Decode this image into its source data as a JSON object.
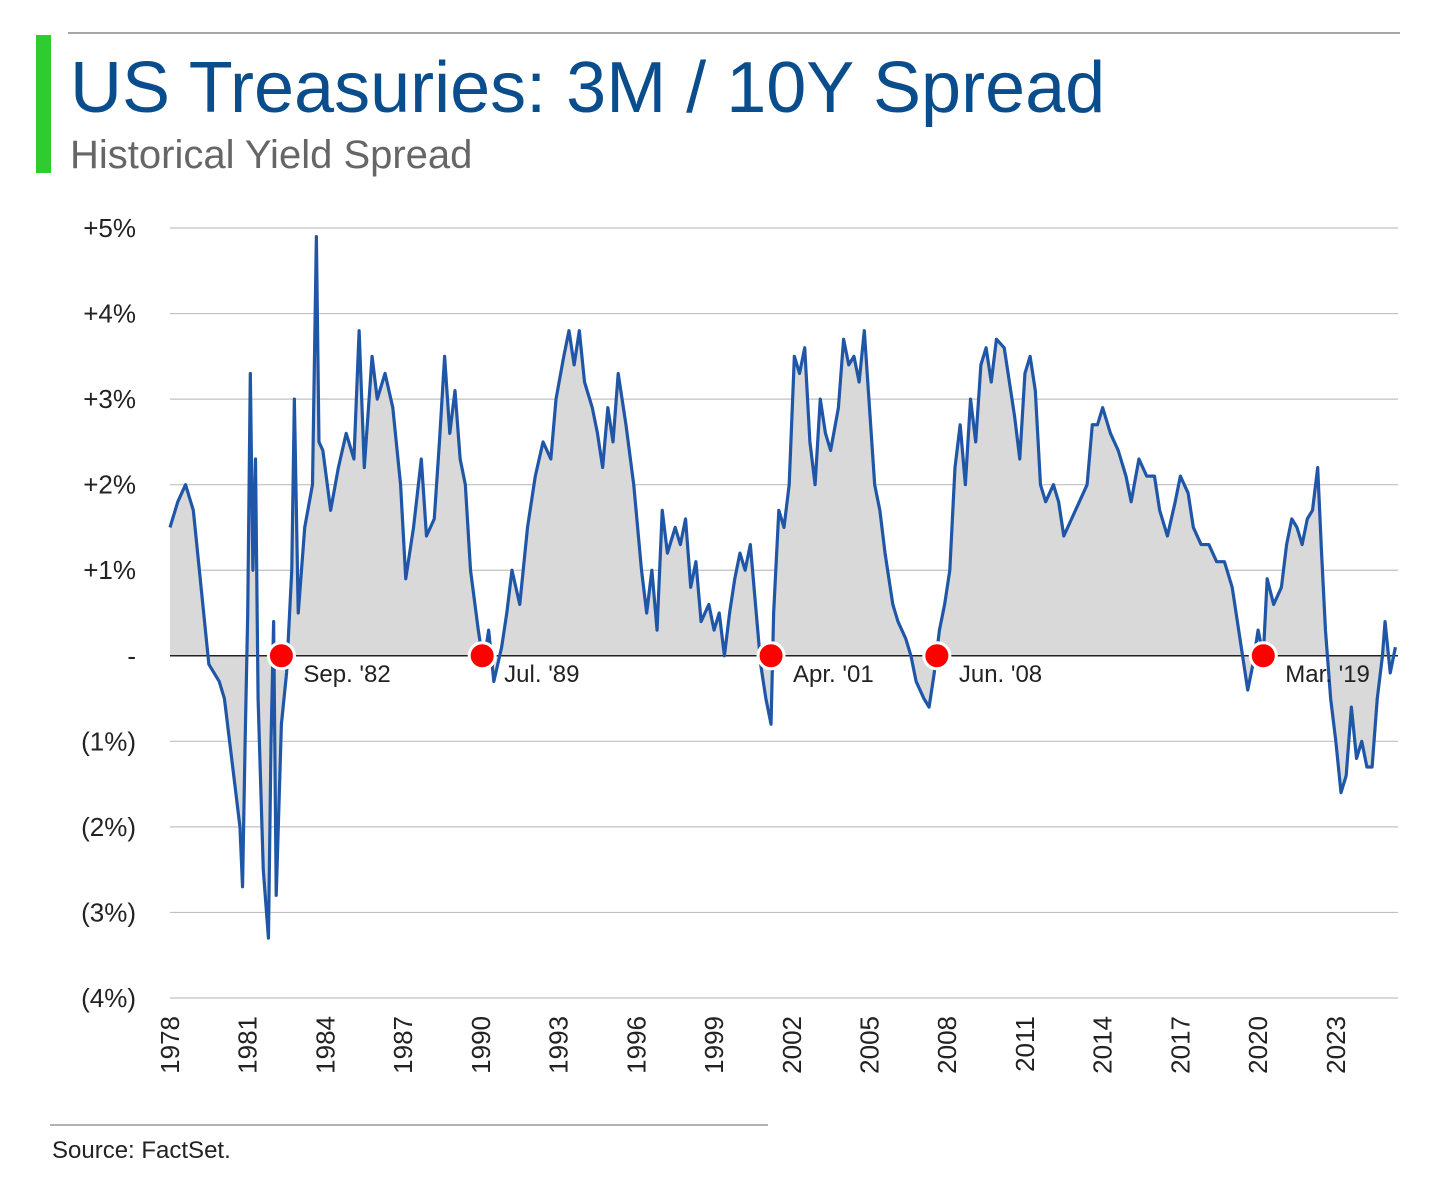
{
  "chart_data": {
    "type": "line",
    "title": "US Treasuries: 3M / 10Y Spread",
    "subtitle": "Historical Yield Spread",
    "source": "Source: FactSet.",
    "series": [
      {
        "name": "3M / 10Y Spread",
        "color": "#1f56a8",
        "area_color": "#d9d9d9",
        "x": [
          1978.0,
          1978.3,
          1978.6,
          1978.9,
          1979.2,
          1979.5,
          1979.9,
          1980.1,
          1980.3,
          1980.5,
          1980.7,
          1980.8,
          1980.9,
          1981.0,
          1981.1,
          1981.2,
          1981.3,
          1981.4,
          1981.6,
          1981.8,
          1981.9,
          1982.0,
          1982.1,
          1982.3,
          1982.5,
          1982.7,
          1982.8,
          1982.95,
          1983.2,
          1983.5,
          1983.65,
          1983.75,
          1983.9,
          1984.2,
          1984.5,
          1984.8,
          1985.1,
          1985.3,
          1985.5,
          1985.8,
          1986.0,
          1986.3,
          1986.6,
          1986.9,
          1987.1,
          1987.4,
          1987.7,
          1987.9,
          1988.2,
          1988.4,
          1988.6,
          1988.8,
          1989.0,
          1989.2,
          1989.4,
          1989.6,
          1989.9,
          1990.1,
          1990.3,
          1990.5,
          1990.8,
          1991.0,
          1991.2,
          1991.5,
          1991.8,
          1992.1,
          1992.4,
          1992.7,
          1992.9,
          1993.2,
          1993.4,
          1993.6,
          1993.8,
          1994.0,
          1994.3,
          1994.5,
          1994.7,
          1994.9,
          1995.1,
          1995.3,
          1995.6,
          1995.9,
          1996.2,
          1996.4,
          1996.6,
          1996.8,
          1997.0,
          1997.2,
          1997.5,
          1997.7,
          1997.9,
          1998.1,
          1998.3,
          1998.5,
          1998.8,
          1999.0,
          1999.2,
          1999.4,
          1999.6,
          1999.8,
          2000.0,
          2000.2,
          2000.4,
          2000.6,
          2000.8,
          2001.0,
          2001.2,
          2001.3,
          2001.5,
          2001.7,
          2001.9,
          2002.1,
          2002.3,
          2002.5,
          2002.7,
          2002.9,
          2003.1,
          2003.3,
          2003.5,
          2003.8,
          2004.0,
          2004.2,
          2004.4,
          2004.6,
          2004.8,
          2005.0,
          2005.2,
          2005.4,
          2005.6,
          2005.9,
          2006.1,
          2006.4,
          2006.6,
          2006.8,
          2007.1,
          2007.3,
          2007.5,
          2007.7,
          2007.9,
          2008.1,
          2008.3,
          2008.5,
          2008.7,
          2008.9,
          2009.1,
          2009.3,
          2009.5,
          2009.7,
          2009.9,
          2010.2,
          2010.4,
          2010.6,
          2010.8,
          2011.0,
          2011.2,
          2011.4,
          2011.6,
          2011.8,
          2012.1,
          2012.3,
          2012.5,
          2012.8,
          2013.1,
          2013.4,
          2013.6,
          2013.8,
          2014.0,
          2014.3,
          2014.6,
          2014.9,
          2015.1,
          2015.4,
          2015.7,
          2016.0,
          2016.2,
          2016.5,
          2016.8,
          2017.0,
          2017.3,
          2017.5,
          2017.8,
          2018.1,
          2018.4,
          2018.7,
          2019.0,
          2019.2,
          2019.4,
          2019.6,
          2019.8,
          2020.0,
          2020.2,
          2020.35,
          2020.6,
          2020.9,
          2021.1,
          2021.3,
          2021.5,
          2021.7,
          2021.9,
          2022.1,
          2022.3,
          2022.45,
          2022.6,
          2022.8,
          2023.0,
          2023.2,
          2023.4,
          2023.6,
          2023.8,
          2024.0,
          2024.2,
          2024.4,
          2024.6,
          2024.8,
          2024.9,
          2025.1,
          2025.3
        ],
        "values": [
          1.5,
          1.8,
          2.0,
          1.7,
          0.8,
          -0.1,
          -0.3,
          -0.5,
          -1.0,
          -1.5,
          -2.0,
          -2.7,
          -1.0,
          0.5,
          3.3,
          1.0,
          2.3,
          -0.5,
          -2.5,
          -3.3,
          -1.0,
          0.4,
          -2.8,
          -0.8,
          -0.2,
          1.0,
          3.0,
          0.5,
          1.5,
          2.0,
          4.9,
          2.5,
          2.4,
          1.7,
          2.2,
          2.6,
          2.3,
          3.8,
          2.2,
          3.5,
          3.0,
          3.3,
          2.9,
          2.0,
          0.9,
          1.5,
          2.3,
          1.4,
          1.6,
          2.5,
          3.5,
          2.6,
          3.1,
          2.3,
          2.0,
          1.0,
          0.3,
          -0.1,
          0.3,
          -0.3,
          0.1,
          0.5,
          1.0,
          0.6,
          1.5,
          2.1,
          2.5,
          2.3,
          3.0,
          3.5,
          3.8,
          3.4,
          3.8,
          3.2,
          2.9,
          2.6,
          2.2,
          2.9,
          2.5,
          3.3,
          2.7,
          2.0,
          1.0,
          0.5,
          1.0,
          0.3,
          1.7,
          1.2,
          1.5,
          1.3,
          1.6,
          0.8,
          1.1,
          0.4,
          0.6,
          0.3,
          0.5,
          0.0,
          0.5,
          0.9,
          1.2,
          1.0,
          1.3,
          0.6,
          -0.1,
          -0.5,
          -0.8,
          0.5,
          1.7,
          1.5,
          2.0,
          3.5,
          3.3,
          3.6,
          2.5,
          2.0,
          3.0,
          2.6,
          2.4,
          2.9,
          3.7,
          3.4,
          3.5,
          3.2,
          3.8,
          2.9,
          2.0,
          1.7,
          1.2,
          0.6,
          0.4,
          0.2,
          0.0,
          -0.3,
          -0.5,
          -0.6,
          -0.2,
          0.3,
          0.6,
          1.0,
          2.2,
          2.7,
          2.0,
          3.0,
          2.5,
          3.4,
          3.6,
          3.2,
          3.7,
          3.6,
          3.2,
          2.8,
          2.3,
          3.3,
          3.5,
          3.1,
          2.0,
          1.8,
          2.0,
          1.8,
          1.4,
          1.6,
          1.8,
          2.0,
          2.7,
          2.7,
          2.9,
          2.6,
          2.4,
          2.1,
          1.8,
          2.3,
          2.1,
          2.1,
          1.7,
          1.4,
          1.8,
          2.1,
          1.9,
          1.5,
          1.3,
          1.3,
          1.1,
          1.1,
          0.8,
          0.4,
          0.0,
          -0.4,
          -0.1,
          0.3,
          0.0,
          0.9,
          0.6,
          0.8,
          1.3,
          1.6,
          1.5,
          1.3,
          1.6,
          1.7,
          2.2,
          1.2,
          0.3,
          -0.5,
          -1.0,
          -1.6,
          -1.4,
          -0.6,
          -1.2,
          -1.0,
          -1.3,
          -1.3,
          -0.5,
          0.0,
          0.4,
          -0.2,
          0.1
        ]
      }
    ],
    "annotations": [
      {
        "x": 1982.3,
        "y": 0,
        "label": "Sep. '82"
      },
      {
        "x": 1990.05,
        "y": 0,
        "label": "Jul. '89"
      },
      {
        "x": 2001.2,
        "y": 0,
        "label": "Apr. '01"
      },
      {
        "x": 2007.6,
        "y": 0,
        "label": "Jun. '08"
      },
      {
        "x": 2020.2,
        "y": 0,
        "label": "Mar. '19"
      }
    ],
    "annotation_color": "#ff0000",
    "xlim": [
      1978,
      2025.4
    ],
    "xticks": [
      1978,
      1981,
      1984,
      1987,
      1990,
      1993,
      1996,
      1999,
      2002,
      2005,
      2008,
      2011,
      2014,
      2017,
      2020,
      2023
    ],
    "ylim": [
      -4,
      5
    ],
    "yticks": [
      {
        "value": 5,
        "label": "+5%"
      },
      {
        "value": 4,
        "label": "+4%"
      },
      {
        "value": 3,
        "label": "+3%"
      },
      {
        "value": 2,
        "label": "+2%"
      },
      {
        "value": 1,
        "label": "+1%"
      },
      {
        "value": 0,
        "label": "-"
      },
      {
        "value": -1,
        "label": "(1%)"
      },
      {
        "value": -2,
        "label": "(2%)"
      },
      {
        "value": -3,
        "label": "(3%)"
      },
      {
        "value": -4,
        "label": "(4%)"
      }
    ],
    "grid": true
  }
}
